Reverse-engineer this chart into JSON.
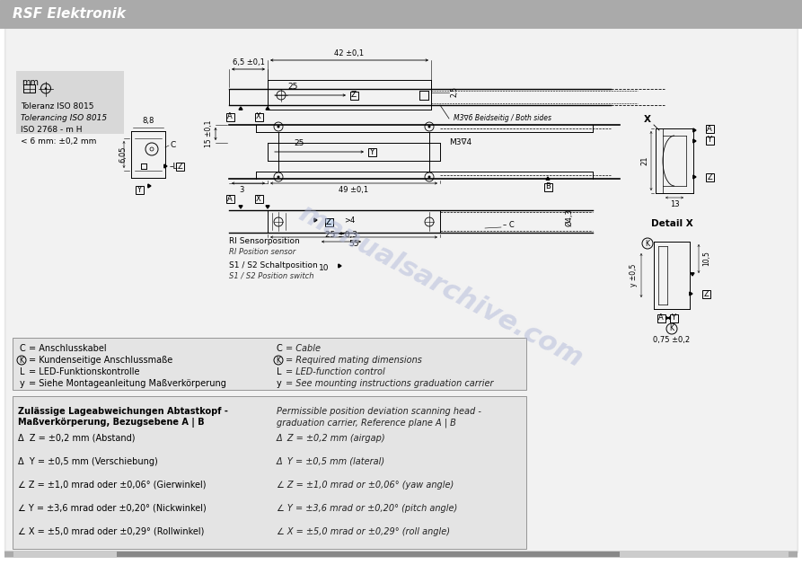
{
  "title": "RSF Elektronik",
  "header_bg": "#aaaaaa",
  "header_text_color": "#ffffff",
  "page_bg": "#ffffff",
  "watermark_text": "manualsarchive.com",
  "watermark_color": "#b0b8d8",
  "legend_box1_lines": [
    [
      "C",
      "Anschlusskabel",
      "C",
      "Cable"
    ],
    [
      "K",
      "Kundenseitige Anschlussmaße",
      "K",
      "Required mating dimensions"
    ],
    [
      "L",
      "LED-Funktionskontrolle",
      "L",
      "LED-function control"
    ],
    [
      "y",
      "Siehe Montageanleitung Maßverkörperung",
      "y",
      "See mounting instructions graduation carrier"
    ]
  ],
  "legend_box2_title_de": "Zulässige Lageabweichungen Abtastkopf -",
  "legend_box2_title_de2": "Maßverkörperung, Bezugsebene A | B",
  "legend_box2_title_en": "Permissible position deviation scanning head -",
  "legend_box2_title_en2": "graduation carrier, Reference plane A | B",
  "legend_box2_lines_de": [
    "Δ  Z = ±0,2 mm (Abstand)",
    "Δ  Y = ±0,5 mm (Verschiebung)",
    "∠ Z = ±1,0 mrad oder ±0,06° (Gierwinkel)",
    "∠ Y = ±3,6 mrad oder ±0,20° (Nickwinkel)",
    "∠ X = ±5,0 mrad oder ±0,29° (Rollwinkel)"
  ],
  "legend_box2_lines_en": [
    "Δ  Z = ±0,2 mm (airgap)",
    "Δ  Y = ±0,5 mm (lateral)",
    "∠ Z = ±1,0 mrad or ±0,06° (yaw angle)",
    "∠ Y = ±3,6 mrad or ±0,20° (pitch angle)",
    "∠ X = ±5,0 mrad or ±0,29° (roll angle)"
  ],
  "info_lines": [
    "mm",
    "Toleranz ISO 8015",
    "Tolerancing ISO 8015",
    "ISO 2768 - m H",
    "< 6 mm: ±0,2 mm"
  ],
  "m3_label_top": "M3∇6 Beidseitig / Both sides",
  "m3_label_mid": "M3∇4"
}
